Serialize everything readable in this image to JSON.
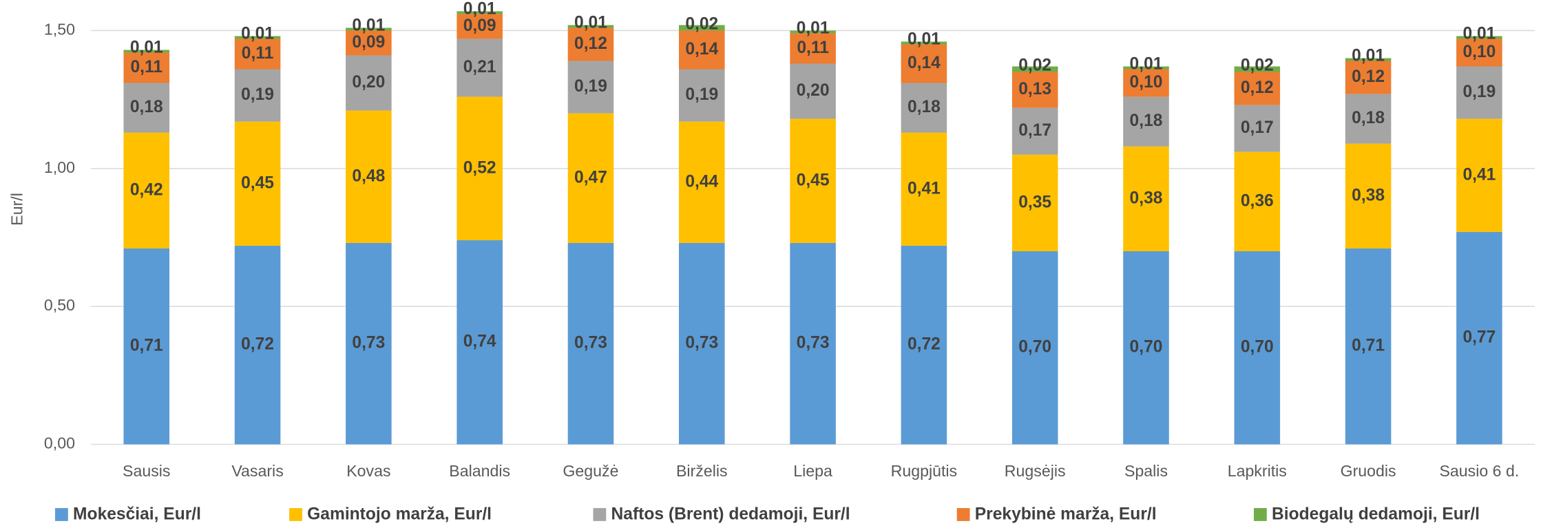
{
  "chart_data": {
    "type": "bar",
    "stacked": true,
    "ylabel": "Eur/l",
    "categories": [
      "Sausis",
      "Vasaris",
      "Kovas",
      "Balandis",
      "Gegužė",
      "Birželis",
      "Liepa",
      "Rugpjūtis",
      "Rugsėjis",
      "Spalis",
      "Lapkritis",
      "Gruodis",
      "Sausio 6 d."
    ],
    "ylim": [
      0,
      1.6
    ],
    "yticks": [
      {
        "value": 0,
        "label": "0,00"
      },
      {
        "value": 0.5,
        "label": "0,50"
      },
      {
        "value": 1,
        "label": "1,00"
      },
      {
        "value": 1.5,
        "label": "1,50"
      }
    ],
    "grid": true,
    "legend": "bottom",
    "series": [
      {
        "name": "Mokesčiai, Eur/l",
        "color": "#5b9bd5",
        "values": [
          0.71,
          0.72,
          0.73,
          0.74,
          0.73,
          0.73,
          0.73,
          0.72,
          0.7,
          0.7,
          0.7,
          0.71,
          0.77
        ],
        "value_labels": [
          "0,71",
          "0,72",
          "0,73",
          "0,74",
          "0,73",
          "0,73",
          "0,73",
          "0,72",
          "0,70",
          "0,70",
          "0,70",
          "0,71",
          "0,77"
        ]
      },
      {
        "name": "Gamintojo marža, Eur/l",
        "color": "#ffc000",
        "values": [
          0.42,
          0.45,
          0.48,
          0.52,
          0.47,
          0.44,
          0.45,
          0.41,
          0.35,
          0.38,
          0.36,
          0.38,
          0.41
        ],
        "value_labels": [
          "0,42",
          "0,45",
          "0,48",
          "0,52",
          "0,47",
          "0,44",
          "0,45",
          "0,41",
          "0,35",
          "0,38",
          "0,36",
          "0,38",
          "0,41"
        ]
      },
      {
        "name": "Naftos (Brent) dedamoji, Eur/l",
        "color": "#a5a5a5",
        "values": [
          0.18,
          0.19,
          0.2,
          0.21,
          0.19,
          0.19,
          0.2,
          0.18,
          0.17,
          0.18,
          0.17,
          0.18,
          0.19
        ],
        "value_labels": [
          "0,18",
          "0,19",
          "0,20",
          "0,21",
          "0,19",
          "0,19",
          "0,20",
          "0,18",
          "0,17",
          "0,18",
          "0,17",
          "0,18",
          "0,19"
        ]
      },
      {
        "name": "Prekybinė marža, Eur/l",
        "color": "#ed7d31",
        "values": [
          0.11,
          0.11,
          0.09,
          0.09,
          0.12,
          0.14,
          0.11,
          0.14,
          0.13,
          0.1,
          0.12,
          0.12,
          0.1
        ],
        "value_labels": [
          "0,11",
          "0,11",
          "0,09",
          "0,09",
          "0,12",
          "0,14",
          "0,11",
          "0,14",
          "0,13",
          "0,10",
          "0,12",
          "0,12",
          "0,10"
        ]
      },
      {
        "name": "Biodegalų dedamoji, Eur/l",
        "color": "#70ad47",
        "values": [
          0.01,
          0.01,
          0.01,
          0.01,
          0.01,
          0.02,
          0.01,
          0.01,
          0.02,
          0.01,
          0.02,
          0.01,
          0.01
        ],
        "value_labels": [
          "0,01",
          "0,01",
          "0,01",
          "0,01",
          "0,01",
          "0,02",
          "0,01",
          "0,01",
          "0,02",
          "0,01",
          "0,02",
          "0,01",
          "0,01"
        ]
      }
    ]
  }
}
